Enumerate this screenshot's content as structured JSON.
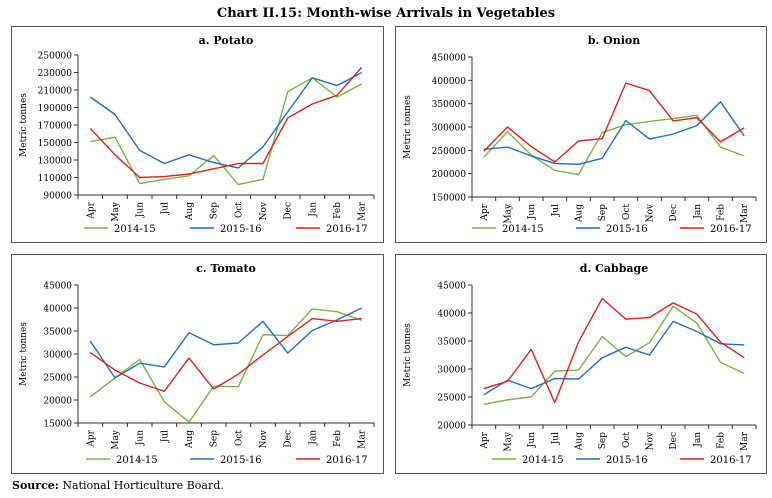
{
  "title": "Chart II.15: Month-wise Arrivals in Vegetables",
  "source_label": "Source:",
  "source_text": "National Horticulture Board.",
  "colors": {
    "s2014": "#7cb342",
    "s2015": "#1f6fc5",
    "s2016": "#e02020"
  },
  "chart_data": [
    {
      "type": "line",
      "title": "a. Potato",
      "ylabel": "Metric tonnes",
      "xlabel": "",
      "categories": [
        "Apr",
        "May",
        "Jun",
        "Jul",
        "Aug",
        "Sep",
        "Oct",
        "Nov",
        "Dec",
        "Jan",
        "Feb",
        "Mar"
      ],
      "ylim": [
        90000,
        250000
      ],
      "yticks": [
        90000,
        110000,
        130000,
        150000,
        170000,
        190000,
        210000,
        230000,
        250000
      ],
      "series": [
        {
          "name": "2014-15",
          "color": "#7cb342",
          "values": [
            151000,
            156000,
            103000,
            108000,
            112000,
            135000,
            102000,
            108000,
            208000,
            224000,
            202000,
            217000
          ]
        },
        {
          "name": "2015-16",
          "color": "#1f6fc5",
          "values": [
            202000,
            182000,
            141000,
            126000,
            136000,
            127000,
            121000,
            145000,
            185000,
            224000,
            215000,
            230000
          ]
        },
        {
          "name": "2016-17",
          "color": "#e02020",
          "values": [
            166000,
            136000,
            110000,
            111000,
            114000,
            120000,
            126000,
            126000,
            178000,
            194000,
            204000,
            236000
          ]
        }
      ]
    },
    {
      "type": "line",
      "title": "b. Onion",
      "ylabel": "Metric tonnes",
      "xlabel": "",
      "categories": [
        "Apr",
        "May",
        "Jun",
        "Jul",
        "Aug",
        "Sep",
        "Oct",
        "Nov",
        "Dec",
        "Jan",
        "Feb",
        "Mar"
      ],
      "ylim": [
        150000,
        450000
      ],
      "yticks": [
        150000,
        200000,
        250000,
        300000,
        350000,
        400000,
        450000
      ],
      "series": [
        {
          "name": "2014-15",
          "color": "#7cb342",
          "values": [
            235000,
            290000,
            240000,
            207000,
            198000,
            288000,
            305000,
            312000,
            318000,
            325000,
            257000,
            238000
          ]
        },
        {
          "name": "2015-16",
          "color": "#1f6fc5",
          "values": [
            252000,
            257000,
            238000,
            222000,
            220000,
            233000,
            314000,
            274000,
            285000,
            303000,
            354000,
            281000
          ]
        },
        {
          "name": "2016-17",
          "color": "#e02020",
          "values": [
            248000,
            300000,
            258000,
            225000,
            270000,
            275000,
            394000,
            378000,
            313000,
            320000,
            268000,
            298000
          ]
        }
      ]
    },
    {
      "type": "line",
      "title": "c. Tomato",
      "ylabel": "Metric tonnes",
      "xlabel": "",
      "categories": [
        "Apr",
        "May",
        "Jun",
        "Jul",
        "Aug",
        "Sep",
        "Oct",
        "Nov",
        "Dec",
        "Jan",
        "Feb",
        "Mar"
      ],
      "ylim": [
        15000,
        45000
      ],
      "yticks": [
        15000,
        20000,
        25000,
        30000,
        35000,
        40000,
        45000
      ],
      "series": [
        {
          "name": "2014-15",
          "color": "#7cb342",
          "values": [
            20700,
            24800,
            28800,
            19600,
            15200,
            23000,
            22900,
            34200,
            34000,
            39800,
            39200,
            37300
          ]
        },
        {
          "name": "2015-16",
          "color": "#1f6fc5",
          "values": [
            32800,
            24800,
            28000,
            27200,
            34600,
            32000,
            32400,
            37100,
            30200,
            35100,
            37400,
            40000
          ]
        },
        {
          "name": "2016-17",
          "color": "#e02020",
          "values": [
            30300,
            26500,
            23700,
            21900,
            29100,
            22400,
            25600,
            29800,
            33800,
            37700,
            37100,
            37700
          ]
        }
      ]
    },
    {
      "type": "line",
      "title": "d. Cabbage",
      "ylabel": "Metric tonnes",
      "xlabel": "",
      "categories": [
        "Apr",
        "May",
        "Jun",
        "Jul",
        "Aug",
        "Sep",
        "Oct",
        "Nov",
        "Dec",
        "Jan",
        "Feb",
        "Mar"
      ],
      "ylim": [
        20000,
        45000
      ],
      "yticks": [
        20000,
        25000,
        30000,
        35000,
        40000,
        45000
      ],
      "series": [
        {
          "name": "2014-15",
          "color": "#7cb342",
          "values": [
            23700,
            24500,
            25000,
            29600,
            29800,
            35800,
            32200,
            34700,
            41200,
            38200,
            31200,
            29200
          ]
        },
        {
          "name": "2015-16",
          "color": "#1f6fc5",
          "values": [
            25400,
            28000,
            26500,
            28300,
            28200,
            32000,
            33900,
            32500,
            38500,
            36700,
            34500,
            34300
          ]
        },
        {
          "name": "2016-17",
          "color": "#e02020",
          "values": [
            26500,
            27800,
            33500,
            24000,
            34800,
            42600,
            38900,
            39200,
            41800,
            39800,
            34800,
            32000
          ]
        }
      ]
    }
  ]
}
